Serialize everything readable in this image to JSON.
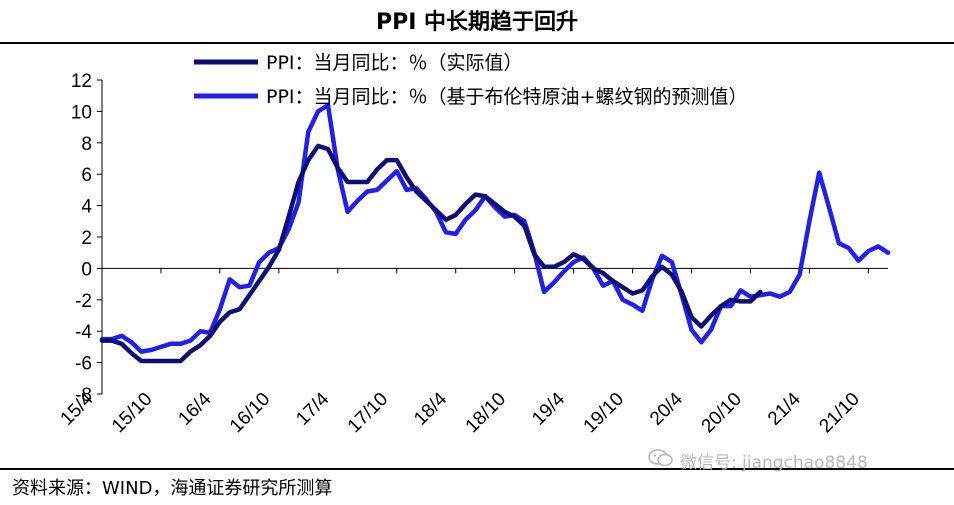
{
  "header": {
    "title": "PPI 中长期趋于回升"
  },
  "footer": {
    "source": "资料来源：WIND，海通证券研究所测算"
  },
  "watermark": {
    "text": "微信号: jiangchao8848",
    "icon": "wechat-icon"
  },
  "chart_data": {
    "type": "line",
    "title": "PPI 中长期趋于回升",
    "xlabel": "",
    "ylabel": "",
    "ylim": [
      -8,
      12
    ],
    "yticks": [
      12,
      10,
      8,
      6,
      4,
      2,
      0,
      -2,
      -4,
      -6,
      -8
    ],
    "x": [
      "2015-04",
      "2015-05",
      "2015-06",
      "2015-07",
      "2015-08",
      "2015-09",
      "2015-10",
      "2015-11",
      "2015-12",
      "2016-01",
      "2016-02",
      "2016-03",
      "2016-04",
      "2016-05",
      "2016-06",
      "2016-07",
      "2016-08",
      "2016-09",
      "2016-10",
      "2016-11",
      "2016-12",
      "2017-01",
      "2017-02",
      "2017-03",
      "2017-04",
      "2017-05",
      "2017-06",
      "2017-07",
      "2017-08",
      "2017-09",
      "2017-10",
      "2017-11",
      "2017-12",
      "2018-01",
      "2018-02",
      "2018-03",
      "2018-04",
      "2018-05",
      "2018-06",
      "2018-07",
      "2018-08",
      "2018-09",
      "2018-10",
      "2018-11",
      "2018-12",
      "2019-01",
      "2019-02",
      "2019-03",
      "2019-04",
      "2019-05",
      "2019-06",
      "2019-07",
      "2019-08",
      "2019-09",
      "2019-10",
      "2019-11",
      "2019-12",
      "2020-01",
      "2020-02",
      "2020-03",
      "2020-04",
      "2020-05",
      "2020-06",
      "2020-07",
      "2020-08",
      "2020-09",
      "2020-10",
      "2020-11",
      "2020-12",
      "2021-01",
      "2021-02",
      "2021-03",
      "2021-04",
      "2021-05",
      "2021-06",
      "2021-07",
      "2021-08",
      "2021-09",
      "2021-10",
      "2021-11",
      "2021-12"
    ],
    "xtick_labels": [
      "15/4",
      "15/10",
      "16/4",
      "16/10",
      "17/4",
      "17/10",
      "18/4",
      "18/10",
      "19/4",
      "19/10",
      "20/4",
      "20/10",
      "21/4",
      "21/10"
    ],
    "xtick_dates": [
      "2015-04",
      "2015-10",
      "2016-04",
      "2016-10",
      "2017-04",
      "2017-10",
      "2018-04",
      "2018-10",
      "2019-04",
      "2019-10",
      "2020-04",
      "2020-10",
      "2021-04",
      "2021-10"
    ],
    "legend_position": "top",
    "series": [
      {
        "name": "PPI：当月同比：％（实际值）",
        "color": "#0d0d73",
        "values": [
          -4.6,
          -4.6,
          -4.8,
          -5.4,
          -5.9,
          -5.9,
          -5.9,
          -5.9,
          -5.9,
          -5.3,
          -4.9,
          -4.3,
          -3.4,
          -2.8,
          -2.6,
          -1.7,
          -0.8,
          0.1,
          1.2,
          3.3,
          5.5,
          6.9,
          7.8,
          7.6,
          6.4,
          5.5,
          5.5,
          5.5,
          6.3,
          6.9,
          6.9,
          5.8,
          4.9,
          4.3,
          3.7,
          3.1,
          3.4,
          4.1,
          4.7,
          4.6,
          4.1,
          3.6,
          3.3,
          2.7,
          0.9,
          0.1,
          0.1,
          0.4,
          0.9,
          0.6,
          0.0,
          -0.3,
          -0.8,
          -1.2,
          -1.6,
          -1.4,
          -0.5,
          0.1,
          -0.4,
          -1.5,
          -3.1,
          -3.7,
          -3.0,
          -2.4,
          -2.0,
          -2.1,
          -2.1,
          -1.5,
          null,
          null,
          null,
          null,
          null,
          null,
          null,
          null,
          null,
          null,
          null,
          null,
          null
        ]
      },
      {
        "name": "PPI：当月同比：％（基于布伦特原油+螺纹钢的预测值）",
        "color": "#1f1ff0",
        "values": [
          -4.5,
          -4.5,
          -4.3,
          -4.7,
          -5.3,
          -5.2,
          -5.0,
          -4.8,
          -4.8,
          -4.6,
          -4.0,
          -4.1,
          -2.6,
          -0.7,
          -1.2,
          -1.1,
          0.4,
          1.0,
          1.3,
          2.5,
          4.2,
          8.7,
          10.0,
          10.4,
          6.3,
          3.6,
          4.3,
          4.9,
          5.0,
          5.6,
          6.2,
          5.0,
          5.1,
          4.4,
          3.6,
          2.3,
          2.2,
          3.1,
          3.7,
          4.6,
          3.9,
          3.3,
          3.4,
          3.0,
          1.0,
          -1.5,
          -0.9,
          -0.2,
          0.4,
          0.7,
          0.0,
          -1.1,
          -0.8,
          -2.0,
          -2.3,
          -2.7,
          -0.7,
          0.8,
          0.4,
          -1.7,
          -3.9,
          -4.7,
          -3.9,
          -2.4,
          -2.4,
          -1.4,
          -1.8,
          -1.7,
          -1.6,
          -1.8,
          -1.5,
          -0.4,
          3.0,
          6.1,
          3.9,
          1.6,
          1.3,
          0.5,
          1.1,
          1.4,
          1.0
        ]
      }
    ]
  }
}
